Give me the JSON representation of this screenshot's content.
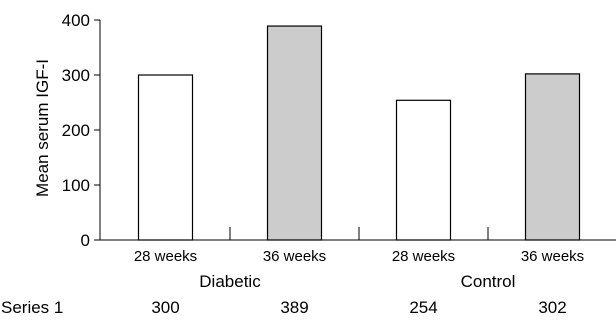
{
  "chart_data": {
    "type": "bar",
    "title": "",
    "ylabel": "Mean serum IGF-I",
    "xlabel": "",
    "ylim": [
      0,
      400
    ],
    "yticks": [
      0,
      100,
      200,
      300,
      400
    ],
    "categories": [
      "28 weeks",
      "36 weeks",
      "28 weeks",
      "36 weeks"
    ],
    "groups": [
      {
        "name": "Diabetic",
        "span": [
          0,
          1
        ]
      },
      {
        "name": "Control",
        "span": [
          2,
          3
        ]
      }
    ],
    "series": [
      {
        "name": "Series 1",
        "values": [
          300,
          389,
          254,
          302
        ]
      }
    ],
    "bar_colors": [
      "#ffffff",
      "#cccccc",
      "#ffffff",
      "#cccccc"
    ],
    "bar_stroke": "#000000",
    "grid": false,
    "data_table": {
      "row_label": "Series 1",
      "values": [
        "300",
        "389",
        "254",
        "302"
      ]
    }
  }
}
